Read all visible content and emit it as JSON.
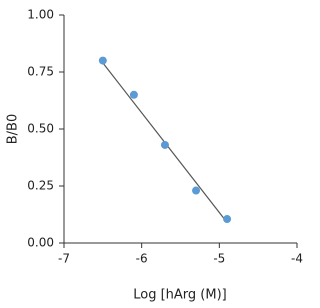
{
  "chart_data": {
    "type": "scatter",
    "x_label": "Log [hArg (M)]",
    "y_label": "B/B0",
    "x": [
      -6.5,
      -6.1,
      -5.7,
      -5.3,
      -4.9
    ],
    "series": [
      {
        "color": "#5b9bd5",
        "values": [
          0.8,
          0.65,
          0.43,
          0.23,
          0.105
        ]
      }
    ],
    "fit": {
      "color": "#555555",
      "x": [
        -6.5,
        -4.9
      ],
      "values": [
        0.79,
        0.09
      ]
    },
    "xlim": [
      -7,
      -4
    ],
    "xticks": [
      -7,
      -6,
      -5,
      -4
    ],
    "ylim": [
      0,
      1
    ],
    "yticks": [
      {
        "value": 0,
        "label": "0.00"
      },
      {
        "value": 0.25,
        "label": "0.25"
      },
      {
        "value": 0.5,
        "label": "0.50"
      },
      {
        "value": 0.75,
        "label": "0.75"
      },
      {
        "value": 1,
        "label": "1.00"
      }
    ],
    "grid": false
  }
}
